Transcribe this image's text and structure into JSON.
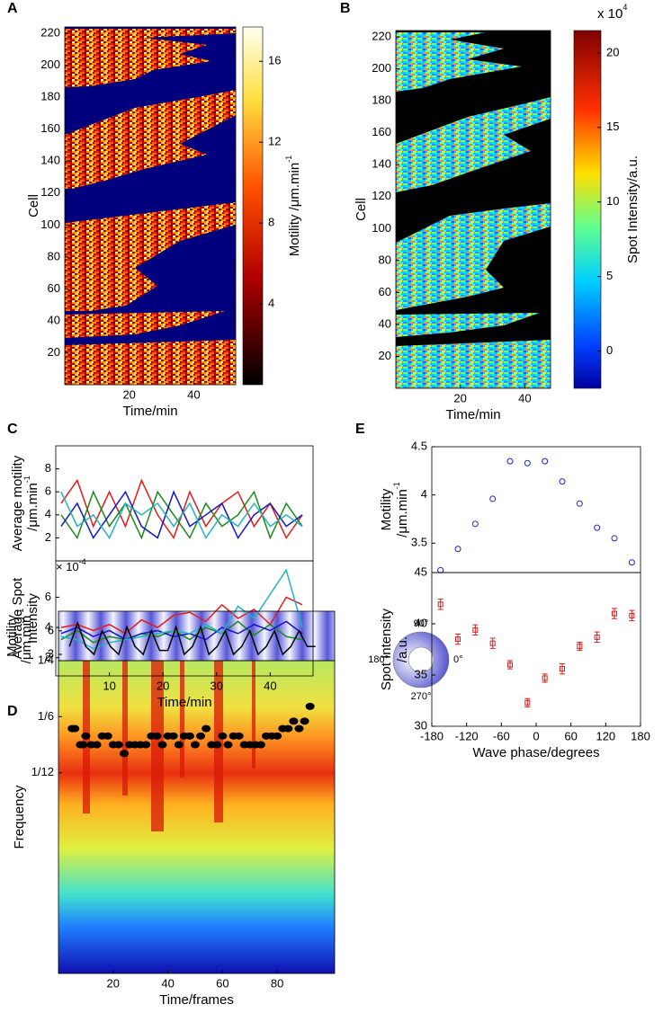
{
  "chart_data": [
    {
      "type": "heatmap",
      "panel": "A",
      "x_label": "Time/min",
      "y_label": [
        "Cell"
      ],
      "xlim": [
        0,
        53
      ],
      "xticks": [
        20,
        40
      ],
      "ylim": [
        0,
        224
      ],
      "yticks": [
        20,
        40,
        60,
        80,
        100,
        120,
        140,
        160,
        180,
        200,
        220
      ],
      "colorbar": {
        "label": "Motility /μm.min",
        "label_sup": "-1",
        "lim": [
          0,
          17.7
        ],
        "ticks": [
          4,
          8,
          12,
          16
        ]
      }
    },
    {
      "type": "heatmap",
      "panel": "B",
      "x_label": "Time/min",
      "y_label": [
        "Cell"
      ],
      "xlim": [
        0,
        48
      ],
      "xticks": [
        20,
        40
      ],
      "ylim": [
        0,
        224
      ],
      "yticks": [
        20,
        40,
        60,
        80,
        100,
        120,
        140,
        160,
        180,
        200,
        220
      ],
      "colorbar": {
        "label": "Spot Intensity/a.u.",
        "lim": [
          -2.5,
          21.5
        ],
        "ticks": [
          0,
          5,
          10,
          15,
          20
        ],
        "multiplier": "x 10",
        "multiplier_sup": "4"
      }
    },
    {
      "type": "line",
      "panel": "C",
      "y_label": [
        "Average motility",
        "/μm.min"
      ],
      "y_label_sup": "-1",
      "xlim": [
        0,
        48
      ],
      "ylim": [
        0,
        10
      ],
      "yticks": [
        2,
        4,
        6,
        8
      ],
      "x": [
        1,
        4,
        7,
        10,
        13,
        16,
        19,
        22,
        25,
        28,
        31,
        34,
        37,
        40,
        43,
        46
      ],
      "series": [
        {
          "color": "#e01c1c",
          "values": [
            5,
            7,
            3,
            6,
            3,
            7,
            4,
            2,
            6,
            3,
            5,
            6,
            3,
            5,
            2,
            4
          ]
        },
        {
          "color": "#1a8a1a",
          "values": [
            4,
            2,
            6,
            3,
            5,
            2,
            6,
            4,
            2,
            5,
            3,
            4,
            6,
            2,
            5,
            3
          ]
        },
        {
          "color": "#1414c8",
          "values": [
            3,
            5,
            2,
            4,
            6,
            3,
            2,
            6,
            3,
            4,
            5,
            2,
            4,
            5,
            3,
            4
          ]
        },
        {
          "color": "#1fb5c0",
          "values": [
            6,
            3,
            4,
            2,
            5,
            4,
            5,
            3,
            5,
            2,
            4,
            3,
            5,
            3,
            4,
            3
          ]
        }
      ]
    },
    {
      "type": "line",
      "y_label": [
        "Average Spot",
        "Intensity"
      ],
      "multiplier": "× 10",
      "multiplier_sup": "-4",
      "x_label": "Time/min",
      "xlim": [
        0,
        48
      ],
      "xticks": [
        10,
        20,
        30,
        40
      ],
      "ylim": [
        0.8,
        8.4
      ],
      "yticks": [
        2,
        4,
        6
      ],
      "x": [
        1,
        4,
        7,
        10,
        13,
        16,
        19,
        22,
        25,
        28,
        31,
        34,
        37,
        40,
        43,
        46
      ],
      "series": [
        {
          "color": "#e01c1c",
          "values": [
            4,
            4.2,
            3.8,
            4.2,
            3.6,
            4.5,
            4,
            4.8,
            5,
            4.4,
            5.5,
            4.6,
            5.2,
            4.2,
            6,
            5.5
          ]
        },
        {
          "color": "#1a8a1a",
          "values": [
            3.2,
            3.8,
            3,
            3.4,
            3.2,
            3.6,
            3.4,
            3.8,
            3.2,
            4,
            3.6,
            4.4,
            3.5,
            4.2,
            3.4,
            3.2
          ]
        },
        {
          "color": "#1414c8",
          "values": [
            3.6,
            4,
            3.4,
            3.8,
            3.2,
            3.6,
            3.8,
            3.4,
            3.6,
            3.2,
            4,
            3.6,
            4.2,
            3.8,
            4.4,
            3.6
          ]
        },
        {
          "color": "#1fb5c0",
          "values": [
            3.4,
            3.2,
            2.6,
            3,
            3.2,
            3.4,
            3.6,
            3.8,
            3.6,
            4.2,
            3.6,
            5.4,
            4.6,
            6.2,
            7.8,
            4
          ]
        }
      ]
    },
    {
      "type": "line",
      "panel": "D",
      "y_label": [
        "Motility",
        "/μm.min"
      ],
      "y_label_sup": "-1",
      "xlim": [
        0,
        101
      ],
      "ylim": [
        2.2,
        8.5
      ],
      "yticks": [
        3,
        6
      ],
      "x": [
        4,
        7,
        10,
        13,
        16,
        19,
        22,
        25,
        28,
        31,
        34,
        37,
        40,
        43,
        46,
        49,
        52,
        55,
        58,
        61,
        64,
        67,
        70,
        73,
        76,
        79,
        82,
        85,
        88,
        91,
        94
      ],
      "series": [
        {
          "color": "#000000",
          "values": [
            4,
            7,
            4,
            3,
            6,
            4,
            3,
            6.5,
            4,
            3,
            6,
            3.5,
            3.5,
            6.5,
            3,
            4,
            6.5,
            3,
            4,
            6,
            3,
            4,
            6,
            3,
            4,
            6,
            3,
            4,
            6,
            4,
            4
          ]
        }
      ]
    },
    {
      "type": "scatter",
      "y_label": [
        "Frequency"
      ],
      "x_label": "Time/frames",
      "xlim": [
        0,
        101
      ],
      "xticks": [
        20,
        40,
        60,
        80
      ],
      "ylim": [
        -0.215,
        0.25
      ],
      "yticks": [
        {
          "value": 0.25,
          "label": "1/4"
        },
        {
          "value": 0.1667,
          "label": "1/6"
        },
        {
          "value": 0.0833,
          "label": "1/12"
        }
      ],
      "series": [
        {
          "color": "#000000",
          "marker": "dot",
          "x": [
            5,
            6,
            8,
            9,
            10,
            12,
            14,
            16,
            18,
            20,
            22,
            24,
            26,
            28,
            30,
            32,
            34,
            36,
            38,
            40,
            42,
            44,
            46,
            48,
            50,
            52,
            54,
            56,
            58,
            60,
            62,
            64,
            66,
            68,
            70,
            72,
            74,
            76,
            78,
            80,
            82,
            84,
            86,
            88,
            90,
            92
          ],
          "values": [
            0.149,
            0.149,
            0.125,
            0.125,
            0.138,
            0.125,
            0.125,
            0.138,
            0.138,
            0.125,
            0.125,
            0.112,
            0.125,
            0.125,
            0.125,
            0.125,
            0.138,
            0.138,
            0.125,
            0.138,
            0.138,
            0.125,
            0.138,
            0.138,
            0.125,
            0.138,
            0.149,
            0.125,
            0.125,
            0.138,
            0.125,
            0.138,
            0.138,
            0.125,
            0.125,
            0.125,
            0.125,
            0.138,
            0.138,
            0.138,
            0.149,
            0.149,
            0.16,
            0.149,
            0.16,
            0.182
          ]
        }
      ]
    },
    {
      "type": "scatter",
      "panel": "E",
      "y_label": [
        "Motility",
        "/μm.min"
      ],
      "y_label_sup": "-1",
      "xlim": [
        -180,
        180
      ],
      "ylim": [
        3.195,
        4.5
      ],
      "yticks": [
        3.5,
        4,
        4.5
      ],
      "x": [
        -165,
        -135,
        -105,
        -75,
        -45,
        -15,
        15,
        45,
        75,
        105,
        135,
        165
      ],
      "series": [
        {
          "color": "#2020d0",
          "marker": "circle",
          "values": [
            3.22,
            3.44,
            3.7,
            3.96,
            4.35,
            4.33,
            4.35,
            4.14,
            3.91,
            3.66,
            3.55,
            3.3
          ]
        }
      ]
    },
    {
      "type": "scatter",
      "y_label": [
        "Spot Intensity",
        "/a.u."
      ],
      "x_label": "Wave phase/degrees",
      "xlim": [
        -180,
        180
      ],
      "xticks": [
        -180,
        -120,
        -60,
        0,
        60,
        120,
        180
      ],
      "ylim": [
        30,
        45
      ],
      "yticks": [
        30,
        35,
        40,
        45
      ],
      "x": [
        -165,
        -135,
        -105,
        -75,
        -45,
        -15,
        15,
        45,
        75,
        105,
        135,
        165
      ],
      "series": [
        {
          "color": "#d02020",
          "marker": "square",
          "values": [
            41.9,
            38.5,
            39.4,
            38.1,
            36,
            32.3,
            34.7,
            35.6,
            37.8,
            38.7,
            41,
            40.8
          ],
          "errors": [
            0.5,
            0.5,
            0.5,
            0.5,
            0.4,
            0.4,
            0.4,
            0.5,
            0.4,
            0.5,
            0.5,
            0.5
          ]
        }
      ]
    }
  ],
  "phase_key": {
    "top": "90°",
    "left": "180°",
    "right": "0°",
    "bottom": "270°"
  }
}
